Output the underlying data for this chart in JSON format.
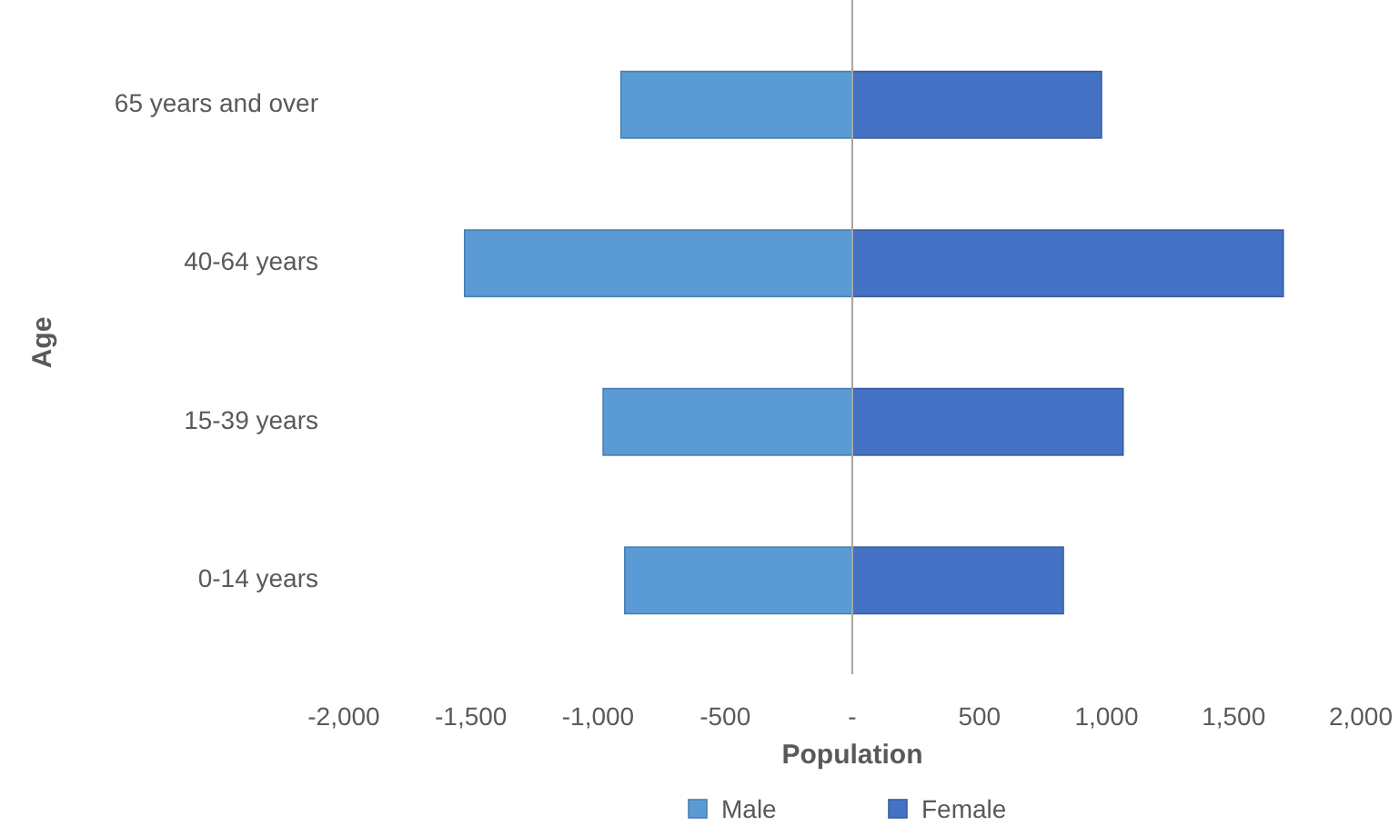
{
  "chart_data": {
    "type": "bar",
    "orientation": "horizontal",
    "stacked": true,
    "xlabel": "Population",
    "ylabel": "Age",
    "categories": [
      "65 years and over",
      "40-64 years",
      "15-39 years",
      "0-14 years"
    ],
    "series": [
      {
        "name": "Male",
        "color": "#5b9bd5",
        "values": [
          -910,
          -1525,
          -980,
          -895
        ]
      },
      {
        "name": "Female",
        "color": "#4472c4",
        "values": [
          980,
          1695,
          1065,
          830
        ]
      }
    ],
    "xlim": [
      -2000,
      2000
    ],
    "xticks": [
      {
        "value": -2000,
        "label": "-2,000"
      },
      {
        "value": -1500,
        "label": "-1,500"
      },
      {
        "value": -1000,
        "label": "-1,000"
      },
      {
        "value": -500,
        "label": "-500"
      },
      {
        "value": 0,
        "label": "-"
      },
      500,
      {
        "value": 1000,
        "label": "1,000"
      },
      {
        "value": 1500,
        "label": "1,500"
      },
      {
        "value": 2000,
        "label": "2,000"
      }
    ],
    "legend": "bottom"
  }
}
